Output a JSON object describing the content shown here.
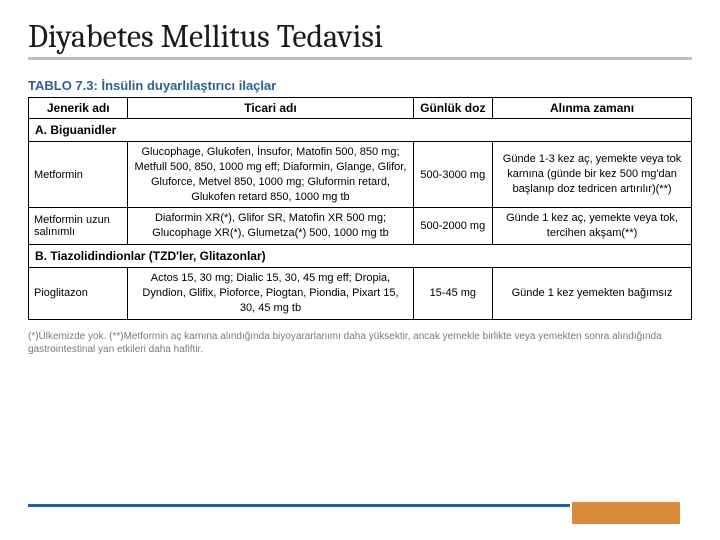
{
  "title": "Diyabetes Mellitus Tedavisi",
  "table": {
    "caption_label": "TABLO 7.3:",
    "caption_text": "İnsülin duyarlılaştırıcı ilaçlar",
    "headers": {
      "generic": "Jenerik adı",
      "trade": "Ticari adı",
      "dose": "Günlük doz",
      "timing": "Alınma zamanı"
    },
    "section_a": "A. Biguanidler",
    "row1": {
      "generic": "Metformin",
      "trade": "Glucophage, Glukofen, İnsufor, Matofin 500, 850 mg; Metfull 500, 850, 1000 mg eff; Diaformin, Glange, Glifor, Gluforce, Metvel 850, 1000 mg; Gluformin retard, Glukofen retard 850, 1000 mg tb",
      "dose": "500-3000 mg",
      "timing": "Günde 1-3 kez aç, yemekte veya tok karnına (günde bir kez 500 mg'dan başlanıp doz tedricen artırılır)(**)"
    },
    "row2": {
      "generic": "Metformin uzun salınımlı",
      "trade": "Diaformin XR(*), Glifor SR, Matofin XR 500 mg; Glucophage XR(*), Glumetza(*) 500, 1000 mg tb",
      "dose": "500-2000 mg",
      "timing": "Günde 1 kez aç, yemekte veya tok, tercihen akşam(**)"
    },
    "section_b": "B. Tiazolidindionlar (TZD'ler, Glitazonlar)",
    "row3": {
      "generic": "Pioglitazon",
      "trade": "Actos 15, 30 mg; Dialic 15, 30, 45 mg eff; Dropia, Dyndion, Glifix, Pioforce, Piogtan, Piondia, Pixart 15, 30, 45 mg tb",
      "dose": "15-45 mg",
      "timing": "Günde 1 kez yemekten bağımsız"
    }
  },
  "footnote": "(*)Ülkemizde yok. (**)Metformin aç karnına alındığında biyoyararlanımı daha yüksektir, ancak yemekle birlikte veya yemekten sonra alındığında gastrointestinal yan etkileri daha hafiftir.",
  "colors": {
    "accent_blue": "#2a6099",
    "accent_orange": "#d98a3a",
    "underline_gray": "#bfbfbf"
  }
}
